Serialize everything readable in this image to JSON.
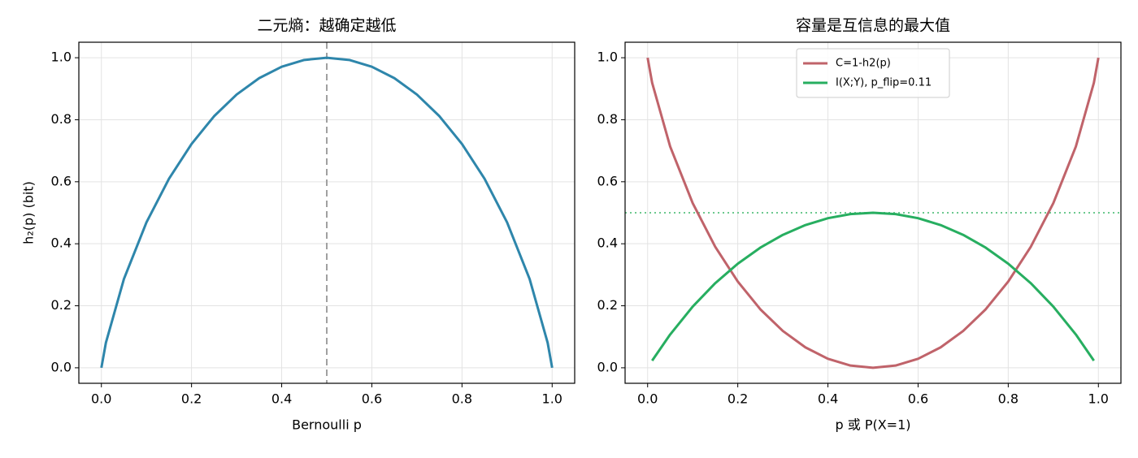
{
  "chart_data": [
    {
      "type": "line",
      "title": "二元熵：越确定越低",
      "xlabel": "Bernoulli p",
      "ylabel": "h₂(p) (bit)",
      "xlim": [
        -0.05,
        1.05
      ],
      "ylim": [
        -0.05,
        1.05
      ],
      "xticks": [
        {
          "value": 0,
          "label": "0.0"
        },
        0.2,
        0.4,
        0.6,
        0.8,
        {
          "value": 1,
          "label": "1.0"
        }
      ],
      "yticks": [
        {
          "value": 0,
          "label": "0.0"
        },
        0.2,
        0.4,
        0.6,
        0.8,
        {
          "value": 1,
          "label": "1.0"
        }
      ],
      "grid": true,
      "vline": {
        "x": 0.5,
        "color": "#a0a0a0",
        "style": "dashed"
      },
      "series": [
        {
          "color": "#2e86ab",
          "x": [
            0,
            0.01,
            0.05,
            0.1,
            0.15,
            0.2,
            0.25,
            0.3,
            0.35,
            0.4,
            0.45,
            0.5,
            0.55,
            0.6,
            0.65,
            0.7,
            0.75,
            0.8,
            0.85,
            0.9,
            0.95,
            0.99,
            1
          ],
          "values": [
            0,
            0.0808,
            0.2864,
            0.469,
            0.6098,
            0.7219,
            0.8113,
            0.8813,
            0.9341,
            0.971,
            0.9928,
            1,
            0.9928,
            0.971,
            0.9341,
            0.8813,
            0.8113,
            0.7219,
            0.6098,
            0.469,
            0.2864,
            0.0808,
            0
          ]
        }
      ]
    },
    {
      "type": "line",
      "title": "容量是互信息的最大值",
      "xlabel": "p 或 P(X=1)",
      "xlim": [
        -0.05,
        1.05
      ],
      "ylim": [
        -0.05,
        1.05
      ],
      "xticks": [
        {
          "value": 0,
          "label": "0.0"
        },
        0.2,
        0.4,
        0.6,
        0.8,
        {
          "value": 1,
          "label": "1.0"
        }
      ],
      "yticks": [
        {
          "value": 0,
          "label": "0.0"
        },
        0.2,
        0.4,
        0.6,
        0.8,
        {
          "value": 1,
          "label": "1.0"
        }
      ],
      "grid": true,
      "legend": "upper-center",
      "hline": {
        "y": 0.5,
        "color": "#6cc98f",
        "style": "dotted"
      },
      "series": [
        {
          "name": "C=1-h2(p)",
          "color": "#c0636a",
          "x": [
            0,
            0.01,
            0.05,
            0.1,
            0.15,
            0.2,
            0.25,
            0.3,
            0.35,
            0.4,
            0.45,
            0.5,
            0.55,
            0.6,
            0.65,
            0.7,
            0.75,
            0.8,
            0.85,
            0.9,
            0.95,
            0.99,
            1
          ],
          "values": [
            1,
            0.9192,
            0.7136,
            0.531,
            0.3902,
            0.2781,
            0.1887,
            0.1187,
            0.0659,
            0.029,
            0.0072,
            0,
            0.0072,
            0.029,
            0.0659,
            0.1187,
            0.1887,
            0.2781,
            0.3902,
            0.531,
            0.7136,
            0.9192,
            1
          ]
        },
        {
          "name": "I(X;Y), p_flip=0.11",
          "color": "#27ae60",
          "x": [
            0.01,
            0.05,
            0.1,
            0.15,
            0.2,
            0.25,
            0.3,
            0.35,
            0.4,
            0.45,
            0.5,
            0.55,
            0.6,
            0.65,
            0.7,
            0.75,
            0.8,
            0.85,
            0.9,
            0.95,
            0.99
          ],
          "values": [
            0.0231,
            0.1074,
            0.1973,
            0.2729,
            0.3357,
            0.3874,
            0.4287,
            0.4603,
            0.4825,
            0.4957,
            0.5,
            0.4957,
            0.4825,
            0.4603,
            0.4287,
            0.3874,
            0.3357,
            0.2729,
            0.1973,
            0.1074,
            0.0231
          ]
        }
      ]
    }
  ]
}
